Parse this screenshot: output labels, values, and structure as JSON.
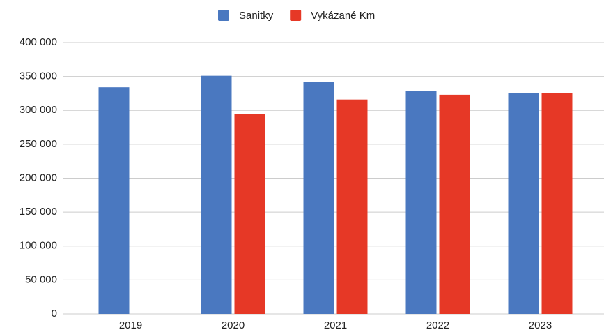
{
  "chart_data": {
    "type": "bar",
    "categories": [
      "2019",
      "2020",
      "2021",
      "2022",
      "2023"
    ],
    "series": [
      {
        "name": "Sanitky",
        "color": "#4a78c0",
        "values": [
          334000,
          351000,
          342000,
          329000,
          325000
        ]
      },
      {
        "name": "Vykázané Km",
        "color": "#e63826",
        "values": [
          null,
          295000,
          316000,
          323000,
          325000
        ]
      }
    ],
    "ylim": [
      0,
      400000
    ],
    "yticks": [
      {
        "value": 0,
        "label": "0"
      },
      {
        "value": 50000,
        "label": "50 000"
      },
      {
        "value": 100000,
        "label": "100 000"
      },
      {
        "value": 150000,
        "label": "150 000"
      },
      {
        "value": 200000,
        "label": "200 000"
      },
      {
        "value": 250000,
        "label": "250 000"
      },
      {
        "value": 300000,
        "label": "300 000"
      },
      {
        "value": 350000,
        "label": "350 000"
      },
      {
        "value": 400000,
        "label": "400 000"
      }
    ],
    "grid": true,
    "legend": "top"
  }
}
